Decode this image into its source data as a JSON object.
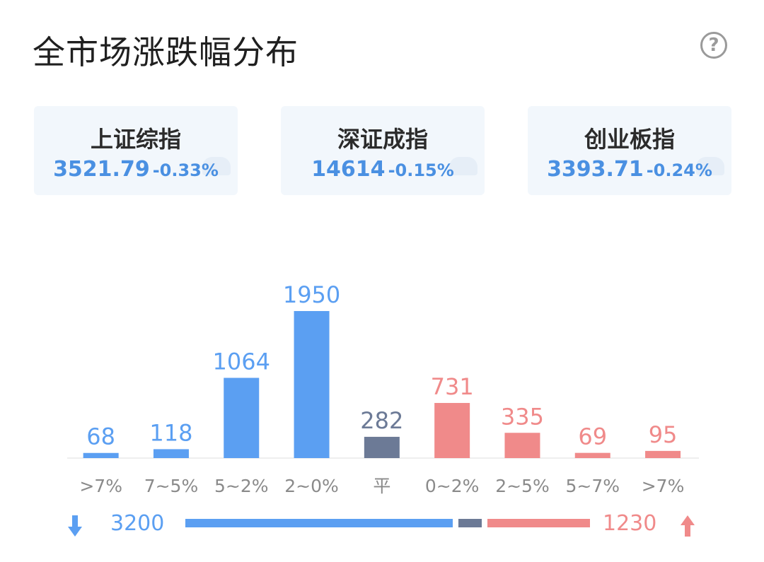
{
  "header": {
    "title": "全市场涨跌幅分布",
    "help_icon": "?"
  },
  "indices": [
    {
      "name": "上证综指",
      "price": "3521.79",
      "change": "-0.33%"
    },
    {
      "name": "深证成指",
      "price": "14614",
      "change": "-0.15%"
    },
    {
      "name": "创业板指",
      "price": "3393.71",
      "change": "-0.24%"
    }
  ],
  "colors": {
    "down": "#5b9ff2",
    "flat": "#6c7a96",
    "up": "#f08a8a",
    "label": "#8a8a8a",
    "price": "#4a90e2"
  },
  "chart_data": {
    "type": "bar",
    "categories": [
      ">7%",
      "7~5%",
      "5~2%",
      "2~0%",
      "平",
      "0~2%",
      "2~5%",
      "5~7%",
      ">7%"
    ],
    "values": [
      68,
      118,
      1064,
      1950,
      282,
      731,
      335,
      69,
      95
    ],
    "groups": [
      "down",
      "down",
      "down",
      "down",
      "flat",
      "up",
      "up",
      "up",
      "up"
    ],
    "title": "",
    "xlabel": "",
    "ylabel": "",
    "ylim": [
      0,
      1950
    ],
    "grid": false,
    "data_labels": true
  },
  "summary": {
    "down_total": "3200",
    "up_total": "1230",
    "down_count": 3200,
    "flat_count": 282,
    "up_count": 1230
  }
}
